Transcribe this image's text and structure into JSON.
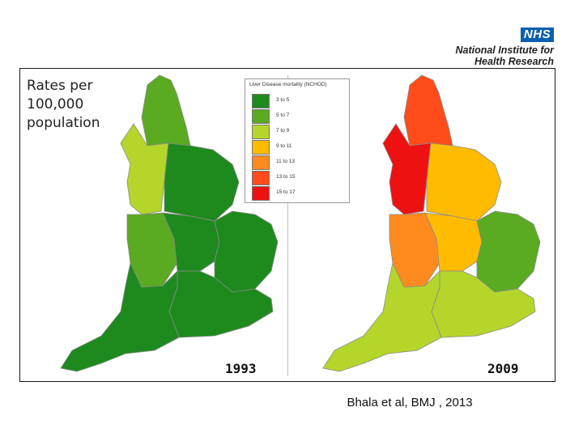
{
  "header": {
    "nhs_logo_text": "NHS",
    "org_line1": "National Institute for",
    "org_line2": "Health Research"
  },
  "rates_label": [
    "Rates per",
    "100,000",
    "population"
  ],
  "legend": {
    "title": "Liver Disease mortality (NCHOD)",
    "items": [
      {
        "label": "3 to 5",
        "color": "#1e8a1e"
      },
      {
        "label": "5 to 7",
        "color": "#5aaa22"
      },
      {
        "label": "7 to 9",
        "color": "#b4d62a"
      },
      {
        "label": "9 to 11",
        "color": "#ffbb00"
      },
      {
        "label": "11 to 13",
        "color": "#ff8a1e"
      },
      {
        "label": "13 to 15",
        "color": "#ff4c1a"
      },
      {
        "label": "15 to 17",
        "color": "#ee1111"
      }
    ]
  },
  "maps": [
    {
      "year": "1993",
      "regions": {
        "north_east": "#5aaa22",
        "north_west": "#b4d62a",
        "yorkshire": "#1e8a1e",
        "west_midlands": "#5aaa22",
        "east_midlands": "#1e8a1e",
        "east_of_england": "#1e8a1e",
        "london": "#b4d62a",
        "south_east": "#1e8a1e",
        "south_west": "#1e8a1e"
      }
    },
    {
      "year": "2009",
      "regions": {
        "north_east": "#ff4c1a",
        "north_west": "#ee1111",
        "yorkshire": "#ffbb00",
        "west_midlands": "#ff8a1e",
        "east_midlands": "#ffbb00",
        "east_of_england": "#5aaa22",
        "london": "#ffbb00",
        "south_east": "#b4d62a",
        "south_west": "#b4d62a"
      }
    }
  ],
  "citation": "Bhala et al, BMJ , 2013"
}
